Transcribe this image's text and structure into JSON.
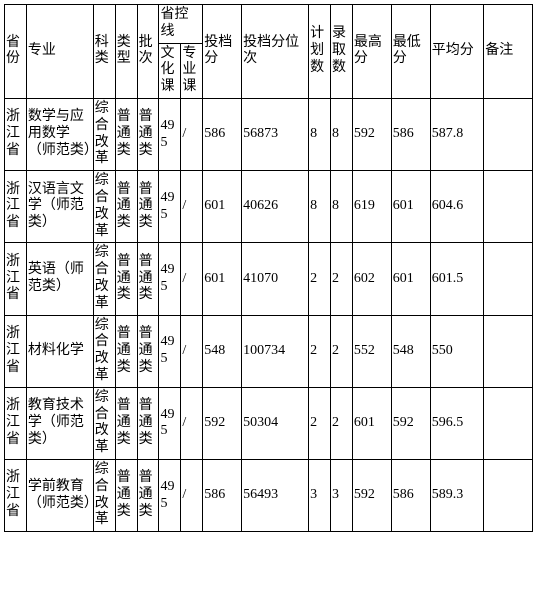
{
  "headers": {
    "province": "省份",
    "major": "专业",
    "subject": "科类",
    "type": "类型",
    "batch": "批次",
    "control_line": "省控线",
    "culture": "文化课",
    "prof_course": "专业课",
    "toudang_fen": "投档分",
    "toudang_weici": "投档分位次",
    "plan_num": "计划数",
    "admit_num": "录取数",
    "max_score": "最高分",
    "min_score": "最低分",
    "avg_score": "平均分",
    "remark": "备注"
  },
  "rows": [
    {
      "province": "浙江省",
      "major": "数学与应用数学（师范类）",
      "subject": "综合改革",
      "type": "普通类",
      "batch": "普通类",
      "culture": "495",
      "prof_course": "/",
      "toudang_fen": "586",
      "toudang_weici": "56873",
      "plan_num": "8",
      "admit_num": "8",
      "max_score": "592",
      "min_score": "586",
      "avg_score": "587.8",
      "remark": ""
    },
    {
      "province": "浙江省",
      "major": "汉语言文学（师范类）",
      "subject": "综合改革",
      "type": "普通类",
      "batch": "普通类",
      "culture": "495",
      "prof_course": "/",
      "toudang_fen": "601",
      "toudang_weici": "40626",
      "plan_num": "8",
      "admit_num": "8",
      "max_score": "619",
      "min_score": "601",
      "avg_score": "604.6",
      "remark": ""
    },
    {
      "province": "浙江省",
      "major": "英语（师范类）",
      "subject": "综合改革",
      "type": "普通类",
      "batch": "普通类",
      "culture": "495",
      "prof_course": "/",
      "toudang_fen": "601",
      "toudang_weici": "41070",
      "plan_num": "2",
      "admit_num": "2",
      "max_score": "602",
      "min_score": "601",
      "avg_score": "601.5",
      "remark": ""
    },
    {
      "province": "浙江省",
      "major": "材料化学",
      "subject": "综合改革",
      "type": "普通类",
      "batch": "普通类",
      "culture": "495",
      "prof_course": "/",
      "toudang_fen": "548",
      "toudang_weici": "100734",
      "plan_num": "2",
      "admit_num": "2",
      "max_score": "552",
      "min_score": "548",
      "avg_score": "550",
      "remark": ""
    },
    {
      "province": "浙江省",
      "major": "教育技术学（师范类）",
      "subject": "综合改革",
      "type": "普通类",
      "batch": "普通类",
      "culture": "495",
      "prof_course": "/",
      "toudang_fen": "592",
      "toudang_weici": "50304",
      "plan_num": "2",
      "admit_num": "2",
      "max_score": "601",
      "min_score": "592",
      "avg_score": "596.5",
      "remark": ""
    },
    {
      "province": "浙江省",
      "major": "学前教育（师范类）",
      "subject": "综合改革",
      "type": "普通类",
      "batch": "普通类",
      "culture": "495",
      "prof_course": "/",
      "toudang_fen": "586",
      "toudang_weici": "56493",
      "plan_num": "3",
      "admit_num": "3",
      "max_score": "592",
      "min_score": "586",
      "avg_score": "589.3",
      "remark": ""
    }
  ]
}
